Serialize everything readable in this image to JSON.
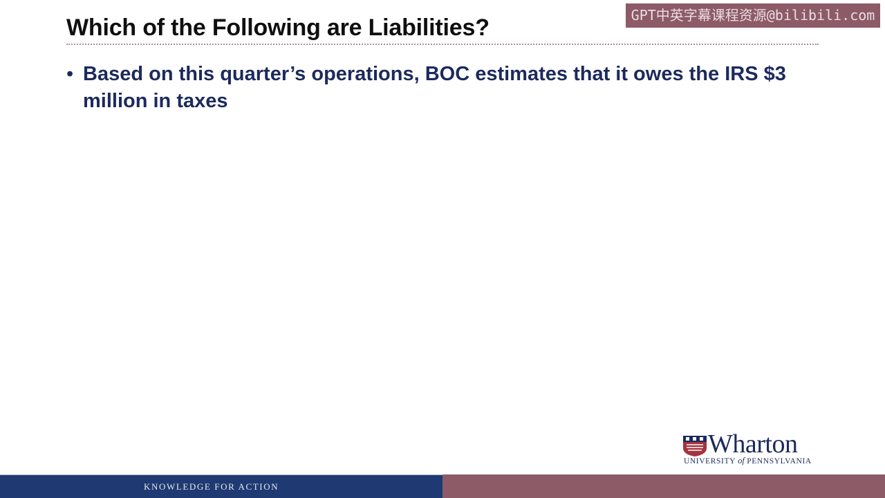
{
  "watermark": {
    "text": "GPT中英字幕课程资源@bilibili.com"
  },
  "slide": {
    "title": "Which of the Following are Liabilities?",
    "bullets": [
      {
        "marker": "•",
        "text": "Based on this quarter’s operations, BOC estimates that it owes the IRS $3 million in taxes"
      }
    ]
  },
  "logo": {
    "name": "Wharton",
    "subtitle_part1": "University",
    "subtitle_of": "of",
    "subtitle_part2": "Pennsylvania",
    "shield_icon": "penn-shield-icon"
  },
  "footer": {
    "tagline": "KNOWLEDGE FOR ACTION",
    "left_color": "#1f3a72",
    "right_color": "#8d5a68"
  }
}
